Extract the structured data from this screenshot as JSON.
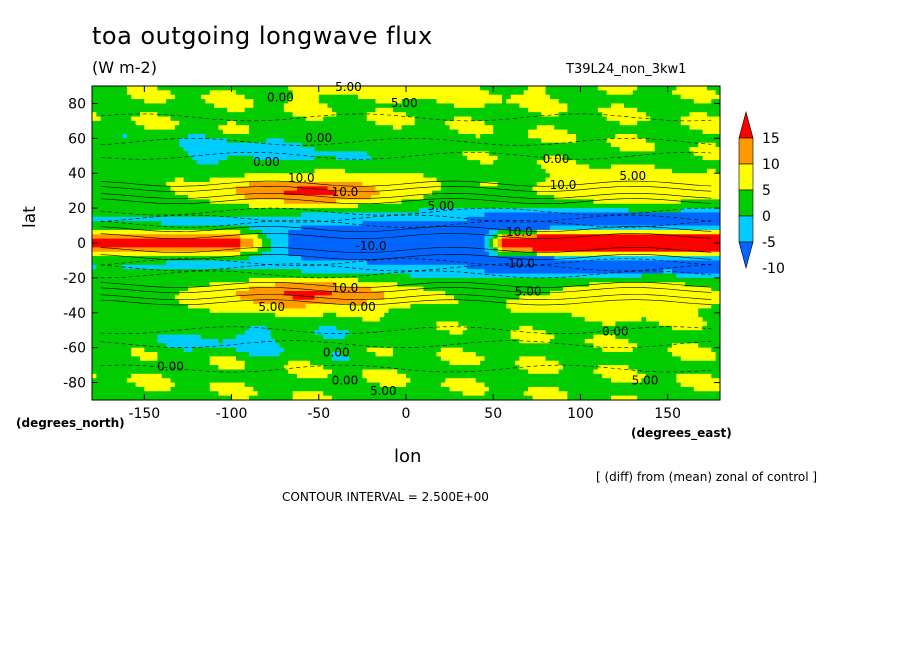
{
  "title": "toa outgoing longwave flux",
  "units": "(W m-2)",
  "run_label": "T39L24_non_3kw1",
  "diff_note": "[ (diff) from (mean) zonal of control ]",
  "contour_interval": "CONTOUR INTERVAL = 2.500E+00",
  "chart_data": {
    "type": "heatmap",
    "title": "toa outgoing longwave flux",
    "subtitle": "(W m-2)",
    "xlabel": "lon",
    "ylabel": "lat",
    "x_unit_label": "(degrees_east)",
    "y_unit_label": "(degrees_north)",
    "xlim": [
      -180,
      180
    ],
    "ylim": [
      -90,
      90
    ],
    "xticks": [
      -150,
      -100,
      -50,
      0,
      50,
      100,
      150
    ],
    "xtick_labels": [
      "-150",
      "-100",
      "-50",
      "0",
      "50",
      "100",
      "150"
    ],
    "yticks": [
      80,
      60,
      40,
      20,
      0,
      -20,
      -40,
      -60,
      -80
    ],
    "ytick_labels": [
      "80",
      "60",
      "40",
      "20",
      "0",
      "-20",
      "-40",
      "-60",
      "-80"
    ],
    "colorbar": {
      "levels": [
        15,
        10,
        5,
        0,
        -5,
        -10
      ],
      "labels": [
        "15",
        "10",
        "5",
        "0",
        "-5",
        "-10"
      ],
      "bands": [
        {
          "range": [
            12.5,
            999
          ],
          "color": "#ff0000"
        },
        {
          "range": [
            7.5,
            12.5
          ],
          "color": "#ff9900"
        },
        {
          "range": [
            2.5,
            7.5
          ],
          "color": "#ffff00"
        },
        {
          "range": [
            -2.5,
            2.5
          ],
          "color": "#00cc00"
        },
        {
          "range": [
            -7.5,
            -2.5
          ],
          "color": "#00ccff"
        },
        {
          "range": [
            -999,
            -7.5
          ],
          "color": "#0066ff"
        }
      ]
    },
    "contour_labels": [
      {
        "text": "0.00",
        "lon": -72,
        "lat": 81
      },
      {
        "text": "5.00",
        "lon": -33,
        "lat": 87
      },
      {
        "text": "5.00",
        "lon": -1,
        "lat": 78
      },
      {
        "text": "0.00",
        "lon": -50,
        "lat": 58
      },
      {
        "text": "0.00",
        "lon": -80,
        "lat": 44
      },
      {
        "text": "0.00",
        "lon": 86,
        "lat": 46
      },
      {
        "text": "10.0",
        "lon": -60,
        "lat": 35
      },
      {
        "text": "10.0",
        "lon": -35,
        "lat": 27
      },
      {
        "text": "10.0",
        "lon": 90,
        "lat": 31
      },
      {
        "text": "5.00",
        "lon": 130,
        "lat": 36
      },
      {
        "text": "5.00",
        "lon": 20,
        "lat": 19
      },
      {
        "text": "-10.0",
        "lon": -20,
        "lat": -4
      },
      {
        "text": "10.0",
        "lon": 65,
        "lat": 4
      },
      {
        "text": "-10.0",
        "lon": 65,
        "lat": -14
      },
      {
        "text": "10.0",
        "lon": -35,
        "lat": -28
      },
      {
        "text": "5.00",
        "lon": -77,
        "lat": -39
      },
      {
        "text": "0.00",
        "lon": -25,
        "lat": -39
      },
      {
        "text": "5.00",
        "lon": 70,
        "lat": -30
      },
      {
        "text": "0.00",
        "lon": 120,
        "lat": -53
      },
      {
        "text": "0.00",
        "lon": -40,
        "lat": -65
      },
      {
        "text": "0.00",
        "lon": -135,
        "lat": -73
      },
      {
        "text": "0.00",
        "lon": -35,
        "lat": -81
      },
      {
        "text": "5.00",
        "lon": -13,
        "lat": -87
      },
      {
        "text": "5.00",
        "lon": 137,
        "lat": -81
      }
    ],
    "features": [
      {
        "name": "subtropical positive band north",
        "lon_range": [
          -130,
          40
        ],
        "lat": 29,
        "peak": 14
      },
      {
        "name": "subtropical positive band south",
        "lon_range": [
          -130,
          40
        ],
        "lat": -29,
        "peak": 14
      },
      {
        "name": "west equatorial positive tongue",
        "lon_range": [
          -180,
          -95
        ],
        "lat": 0,
        "peak": 15
      },
      {
        "name": "east equatorial positive core",
        "lon_range": [
          55,
          180
        ],
        "lat": 0,
        "peak": 20
      },
      {
        "name": "equatorial negative belt",
        "lon_range": [
          -180,
          180
        ],
        "lat_range": [
          -20,
          20
        ],
        "peak": -25
      }
    ]
  }
}
